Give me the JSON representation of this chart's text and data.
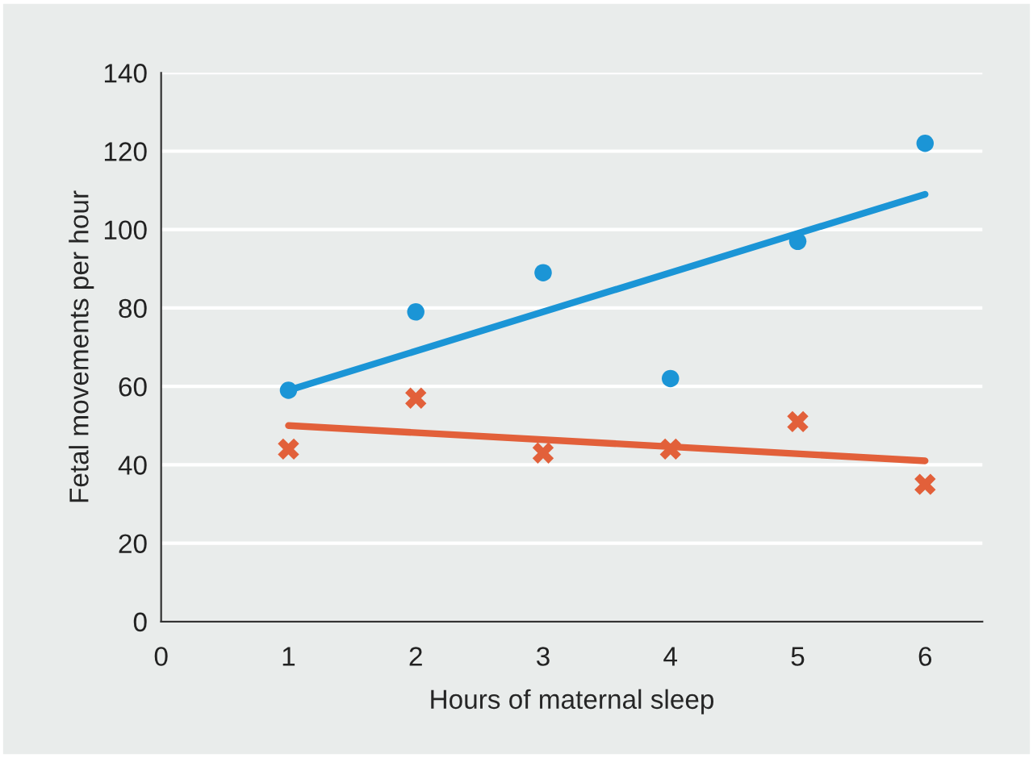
{
  "chart_data": {
    "type": "scatter",
    "xlabel": "Hours of maternal sleep",
    "ylabel": "Fetal movements per hour",
    "xlim": [
      0,
      6.45
    ],
    "xticks": [
      0,
      1,
      2,
      3,
      4,
      5,
      6
    ],
    "ylim": [
      0,
      140
    ],
    "yticks": [
      0,
      20,
      40,
      60,
      80,
      100,
      120,
      140
    ],
    "grid": "y",
    "series": [
      {
        "marker": "circle",
        "color": "#1b95d6",
        "x": [
          1,
          2,
          3,
          4,
          5,
          6
        ],
        "values": [
          59,
          79,
          89,
          62,
          97,
          122
        ]
      },
      {
        "marker": "cross",
        "color": "#e2603a",
        "x": [
          1,
          2,
          3,
          4,
          5,
          6
        ],
        "values": [
          44,
          57,
          43,
          44,
          51,
          35
        ]
      },
      {
        "type": "line",
        "color": "#1b95d6",
        "x": [
          1,
          6
        ],
        "values": [
          59,
          109
        ]
      },
      {
        "type": "line",
        "color": "#e2603a",
        "x": [
          1,
          6
        ],
        "values": [
          50,
          41
        ]
      }
    ]
  }
}
